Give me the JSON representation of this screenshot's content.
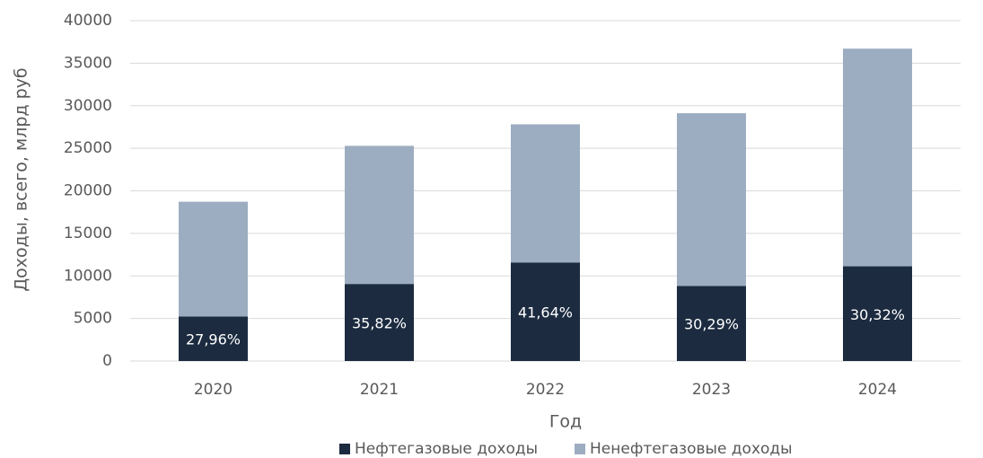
{
  "chart_data": {
    "type": "stacked_bar",
    "categories": [
      "2020",
      "2021",
      "2022",
      "2023",
      "2024"
    ],
    "series": [
      {
        "name": "Нефтегазовые доходы",
        "color": "#1c2b40",
        "values": [
          5234,
          9059,
          11584,
          8821,
          11130
        ]
      },
      {
        "name": "Ненефтегазовые доходы",
        "color": "#9dadc1",
        "values": [
          13486,
          16231,
          16236,
          20299,
          25580
        ]
      }
    ],
    "shares": {
      "values": [
        27.96,
        35.82,
        41.64,
        30.29,
        30.32
      ],
      "value_labels": [
        "27,96%",
        "35,82%",
        "41,64%",
        "30,29%",
        "30,32%"
      ]
    },
    "xlabel": "Год",
    "ylabel": "Доходы, всего, млрд руб",
    "ylim": [
      0,
      40000
    ],
    "yticks": [
      0,
      5000,
      10000,
      15000,
      20000,
      25000,
      30000,
      35000,
      40000
    ],
    "grid": true,
    "legend": "bottom"
  }
}
